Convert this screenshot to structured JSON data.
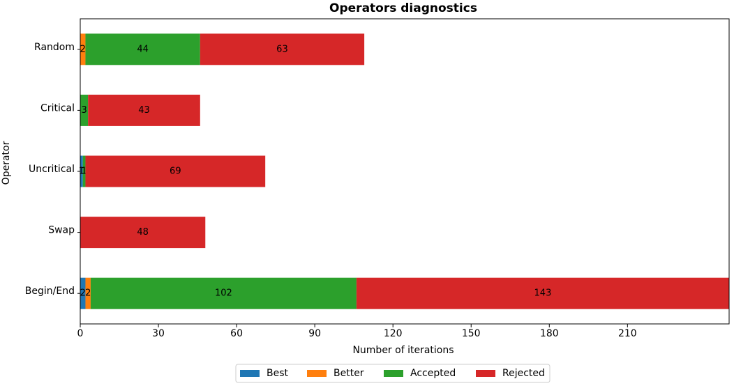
{
  "chart_data": {
    "type": "stacked-barh",
    "title": "Operators diagnostics",
    "x_label": "Number of iterations",
    "y_label": "Operator",
    "categories": [
      "Random",
      "Critical",
      "Uncritical",
      "Swap",
      "Begin/End"
    ],
    "series": [
      {
        "name": "Best",
        "color": "#1f77b4",
        "values": [
          0,
          0,
          1,
          0,
          2
        ]
      },
      {
        "name": "Better",
        "color": "#ff7f0e",
        "values": [
          2,
          0,
          0,
          0,
          2
        ]
      },
      {
        "name": "Accepted",
        "color": "#2ca02c",
        "values": [
          44,
          3,
          1,
          0,
          102
        ]
      },
      {
        "name": "Rejected",
        "color": "#d62728",
        "values": [
          63,
          43,
          69,
          48,
          143
        ]
      }
    ],
    "xlim": [
      0,
      249
    ],
    "xticks": [
      0,
      30,
      60,
      90,
      120,
      150,
      180,
      210
    ],
    "legend": "bottom"
  }
}
